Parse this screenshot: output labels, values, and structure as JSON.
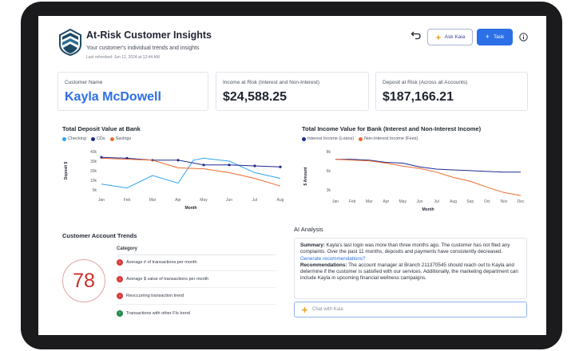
{
  "header": {
    "title": "At-Risk Customer Insights",
    "subtitle": "Your customer's individual trends and insights",
    "last_refreshed": "Last refreshed: Jun 12, 2024 at 12:44 AM",
    "ask_label": "Ask Kaia",
    "task_label": "Task"
  },
  "cards": {
    "customer_name_label": "Customer Name",
    "customer_name": "Kayla McDowell",
    "income_label": "Income at Risk (Interest and Non-Interest)",
    "income_value": "$24,588.25",
    "deposit_label": "Deposit at Risk (Across all Accounts)",
    "deposit_value": "$187,166.21"
  },
  "chart_data": [
    {
      "type": "line",
      "title": "Total Deposit Value at Bank",
      "xlabel": "Month",
      "ylabel": "Deposit $",
      "categories": [
        "Jan",
        "Feb",
        "Mar",
        "Apr",
        "May",
        "Jun",
        "Jul",
        "Aug"
      ],
      "y_ticks": [
        "40k",
        "30k",
        "20k",
        "10k",
        "0k"
      ],
      "ylim": [
        0,
        40000
      ],
      "series": [
        {
          "name": "Checking",
          "color": "#2ea3f2",
          "x": [
            1,
            2,
            3,
            4,
            4.6,
            5,
            6,
            7,
            8
          ],
          "values": [
            6000,
            2000,
            15000,
            7000,
            31000,
            33000,
            30000,
            18000,
            12000
          ]
        },
        {
          "name": "CDs",
          "color": "#1e2a8f",
          "x": [
            1,
            2,
            3,
            4,
            5,
            6,
            7,
            8
          ],
          "values": [
            34000,
            33000,
            31000,
            31000,
            26000,
            26000,
            25000,
            24000
          ]
        },
        {
          "name": "Savings",
          "color": "#ee6a2c",
          "x": [
            1,
            2,
            3,
            4,
            5,
            6,
            7,
            8
          ],
          "values": [
            33000,
            32000,
            31000,
            23000,
            22000,
            18000,
            12000,
            4000
          ]
        }
      ],
      "legend": "top-left",
      "grid": false
    },
    {
      "type": "line",
      "title": "Total Income Value for Bank (Interest and Non-Interest Income)",
      "xlabel": "Month",
      "ylabel": "$ Amount",
      "categories": [
        "Jan",
        "Feb",
        "Mar",
        "Apr",
        "May",
        "Jun",
        "Jul",
        "Aug",
        "Sep",
        "Oct",
        "Nov",
        "Dec"
      ],
      "y_ticks": [
        "8k",
        "6k",
        "3k"
      ],
      "series": [
        {
          "name": "Interest Income (Loans)",
          "color": "#1e2a8f",
          "x": [
            1,
            2,
            3,
            4,
            5,
            6,
            7,
            8,
            9,
            10,
            11,
            12
          ],
          "values": [
            7.0,
            7.0,
            6.9,
            6.6,
            6.5,
            6.0,
            5.7,
            5.6,
            5.5,
            5.4,
            5.3,
            5.3
          ]
        },
        {
          "name": "Non-Interest Income (Fees)",
          "color": "#ee6a2c",
          "x": [
            1,
            2,
            3,
            4,
            5,
            6,
            7,
            8,
            9,
            10,
            11,
            12
          ],
          "values": [
            7.0,
            6.9,
            6.8,
            6.5,
            6.1,
            5.8,
            5.3,
            4.6,
            4.1,
            3.3,
            2.6,
            2.2
          ]
        }
      ],
      "legend": "top-left",
      "grid": false
    }
  ],
  "trends": {
    "title": "Customer Account Trends",
    "score": "78",
    "category_header": "Category",
    "items": [
      {
        "label": "Average # of transactions per month",
        "direction": "down",
        "color": "#d83a3a"
      },
      {
        "label": "Average $ value of transactions per month",
        "direction": "down",
        "color": "#d83a3a"
      },
      {
        "label": "Reoccurring transaction trend",
        "direction": "down",
        "color": "#d83a3a"
      },
      {
        "label": "Transactions with other FIs trend",
        "direction": "up",
        "color": "#1f8a4c"
      }
    ]
  },
  "ai": {
    "title": "AI Analysis",
    "summary_label": "Summary:",
    "summary_text": "Kayla's last login was more than three months ago. The customer has not filed any complaints. Over the past 11 months, deposits and payments have consistently decreased.",
    "summary_link": "Generate recommendations?",
    "rec_label": "Recommendations:",
    "rec_text": "The account manager at Branch 211370545 should reach out to Kayla and determine if the customer is satisfied with our services. Additionally, the marketing department can include Kayla in upcoming financial wellness campaigns.",
    "chat_placeholder": "Chat with Kaia"
  },
  "icons": {
    "logo": "shield-logo-icon",
    "undo": "undo-icon",
    "sparkle": "sparkle-icon",
    "plus": "plus-icon",
    "info": "info-icon"
  },
  "colors": {
    "accent": "#2c6fe6",
    "danger": "#d83a3a",
    "success": "#1f8a4c"
  }
}
